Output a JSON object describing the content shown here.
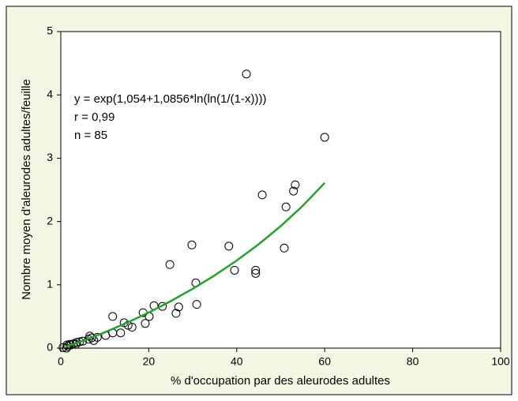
{
  "chart_data": {
    "type": "scatter",
    "x_label": "% d'occupation par des aleurodes adultes",
    "y_label": "Nombre moyen d'aleurodes adultes/feuille",
    "annotations": [
      "y = exp(1,054+1,0856*ln(ln(1/(1-x))))",
      "r =  0,99",
      "n = 85"
    ],
    "xlim": [
      0,
      100
    ],
    "xticks": [
      0,
      20,
      40,
      60,
      80,
      100
    ],
    "ylim": [
      0,
      5
    ],
    "yticks": [
      0,
      1,
      2,
      3,
      4,
      5
    ],
    "series": [
      {
        "type": "scatter",
        "color": "#000000",
        "x": [
          42.2,
          60,
          53.3,
          52.9,
          45.8,
          51.2,
          29.8,
          38.2,
          50.8,
          24.8,
          30.7,
          44.3,
          44.3,
          39.5,
          30.9,
          26.8,
          26.2,
          23.1,
          21.2,
          18.7,
          20.1,
          19.2,
          11.8,
          16.2,
          14.4,
          15.3,
          13.6,
          11.8,
          10.2,
          8.3,
          7.0,
          7.5,
          6.3,
          6.6,
          5.0,
          4.3,
          3.6,
          2.9,
          2.0,
          1.4,
          1.3,
          0.5,
          1.6,
          2.3,
          3.4
        ],
        "values": [
          4.33,
          3.33,
          2.58,
          2.48,
          2.42,
          2.23,
          1.63,
          1.61,
          1.58,
          1.32,
          1.03,
          1.23,
          1.18,
          1.23,
          0.69,
          0.65,
          0.55,
          0.66,
          0.67,
          0.56,
          0.5,
          0.39,
          0.5,
          0.33,
          0.4,
          0.36,
          0.24,
          0.24,
          0.2,
          0.17,
          0.16,
          0.12,
          0.14,
          0.19,
          0.11,
          0.1,
          0.09,
          0.07,
          0.06,
          0.05,
          0.0,
          0.01,
          0.03,
          0.05,
          0.06
        ]
      },
      {
        "type": "line",
        "color": "#1fa32c",
        "x": [
          1,
          5,
          10,
          15,
          20,
          25,
          30,
          35,
          40,
          45,
          50,
          55,
          60
        ],
        "values": [
          0.02,
          0.114,
          0.249,
          0.399,
          0.563,
          0.742,
          0.937,
          1.15,
          1.384,
          1.641,
          1.927,
          2.247,
          2.61
        ]
      }
    ]
  }
}
